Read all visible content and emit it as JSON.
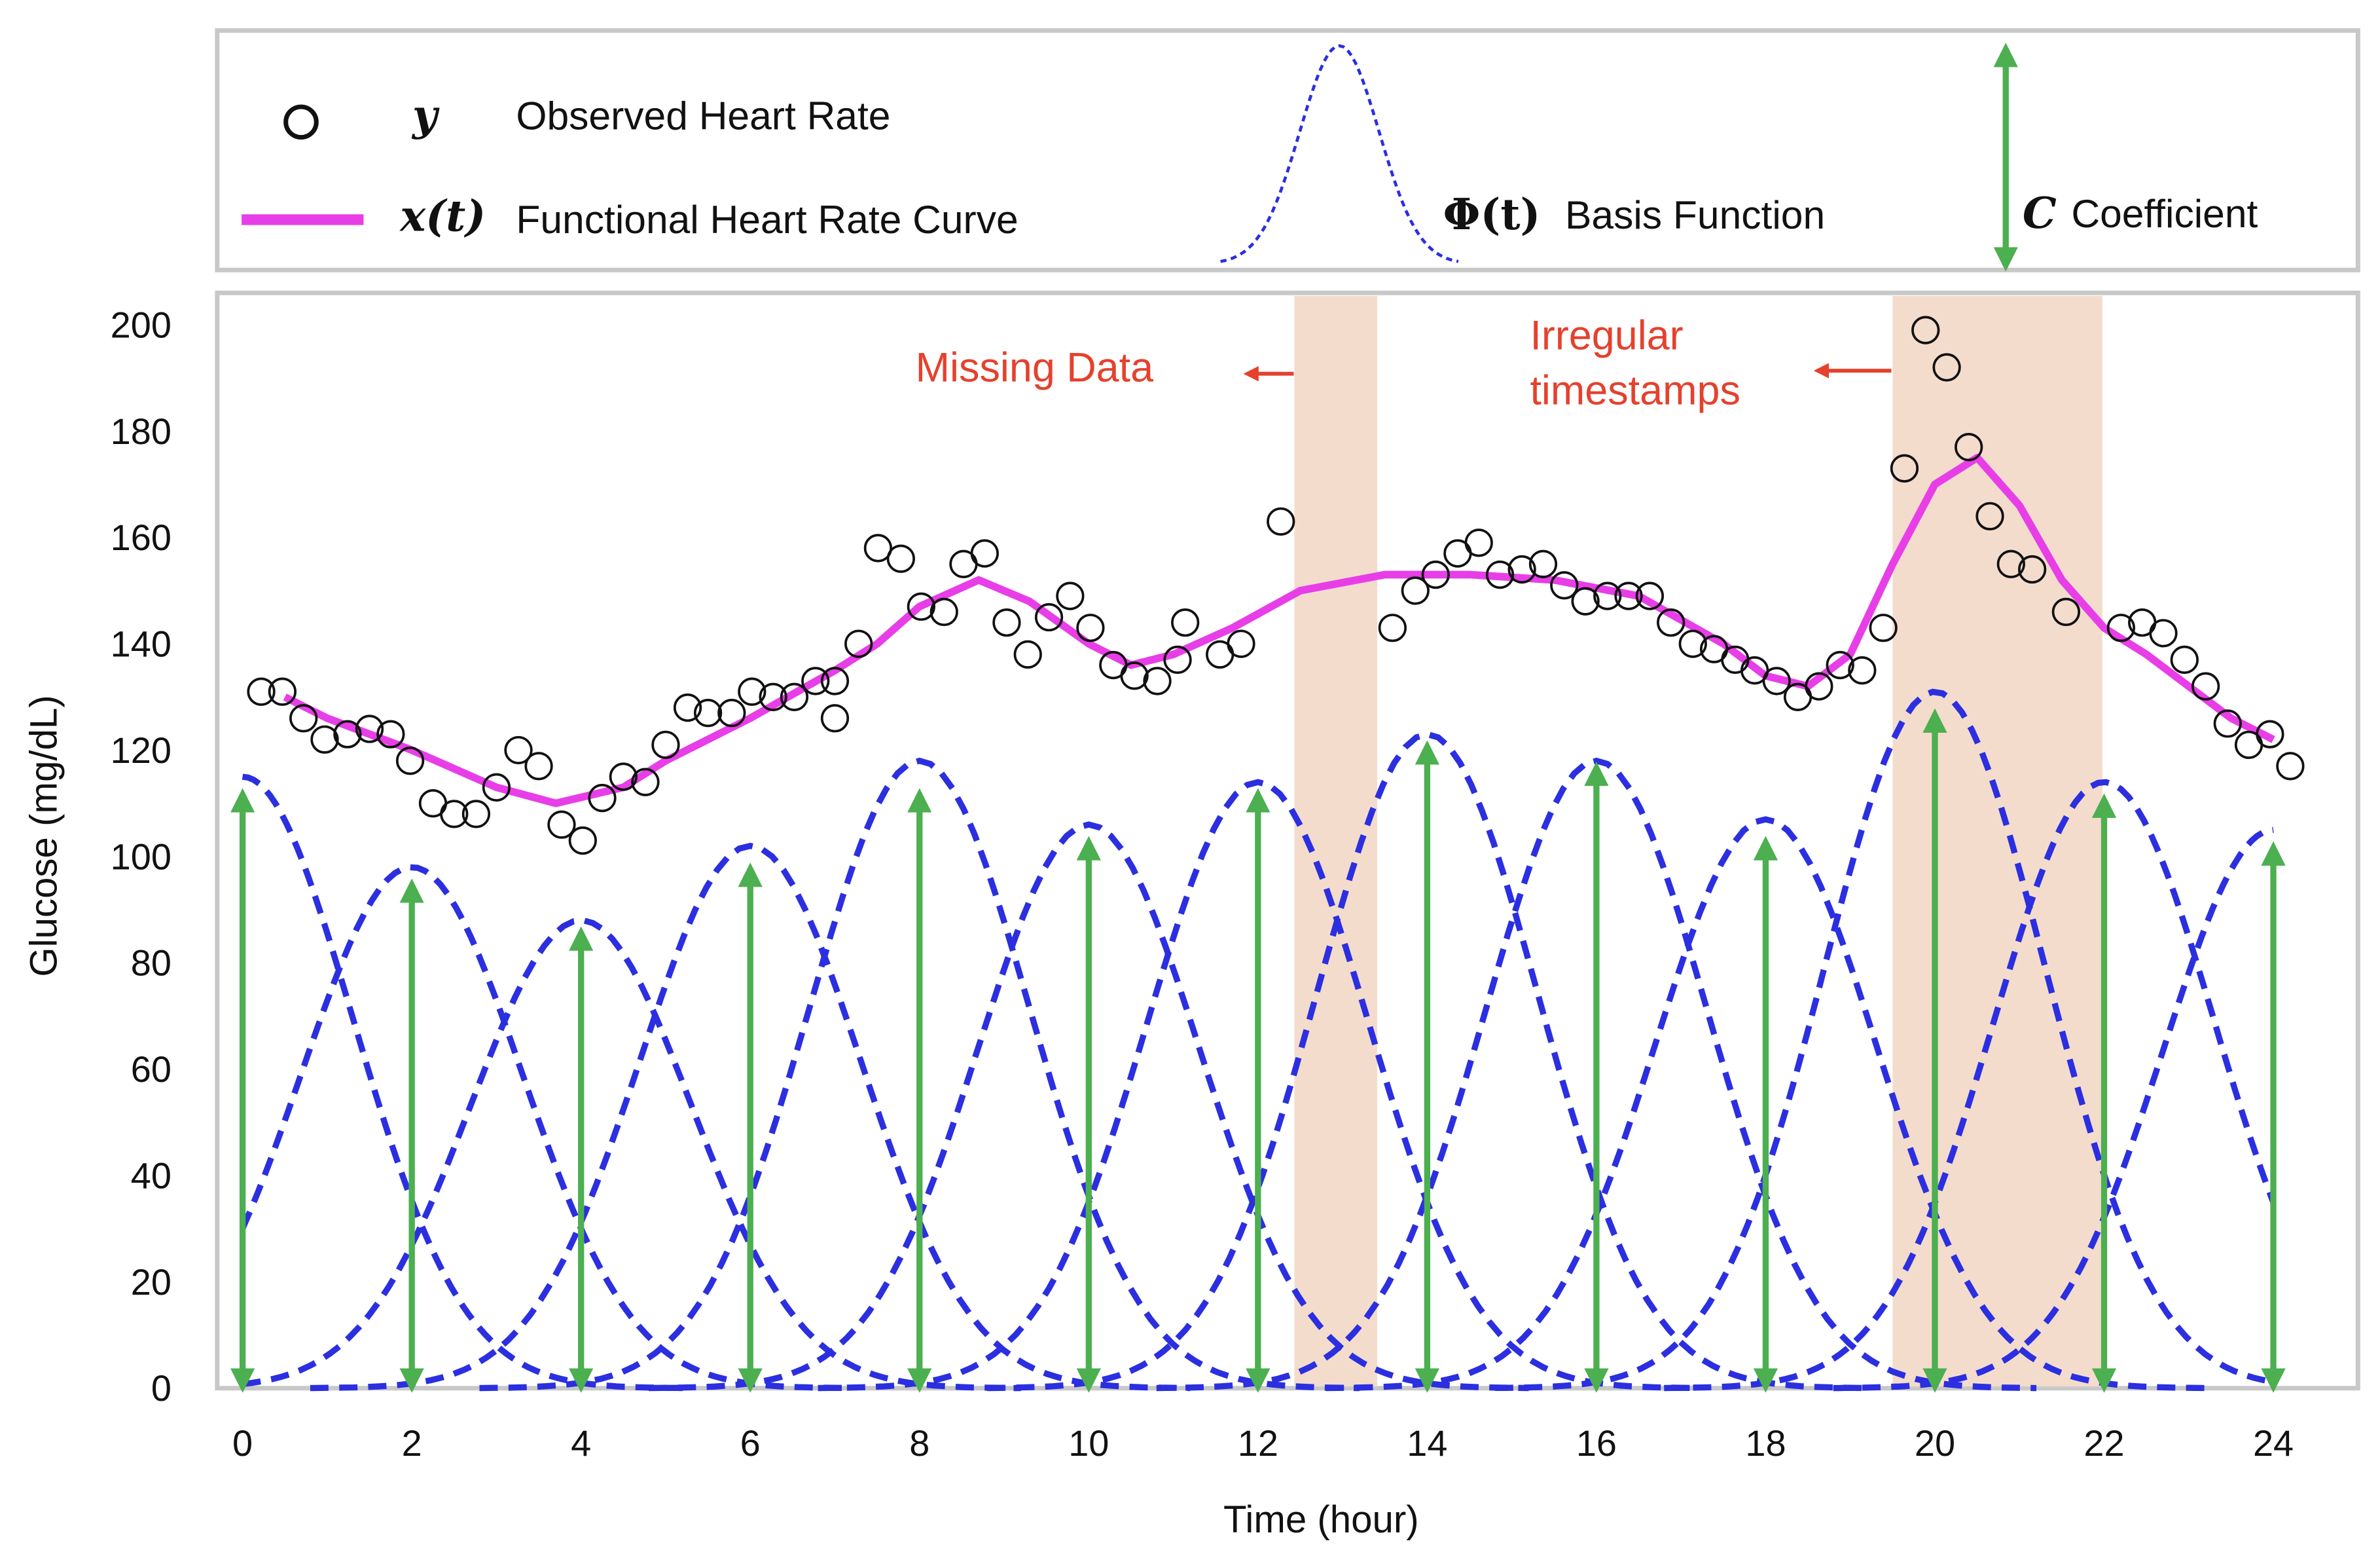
{
  "chart_data": {
    "type": "functional-fit",
    "xlabel": "Time (hour)",
    "ylabel": "Glucose (mg/dL)",
    "xlim": [
      -0.3,
      25
    ],
    "ylim": [
      0,
      206
    ],
    "xticks": [
      0,
      2,
      4,
      6,
      8,
      10,
      12,
      14,
      16,
      18,
      20,
      22,
      24
    ],
    "yticks": [
      0,
      20,
      40,
      60,
      80,
      100,
      120,
      140,
      160,
      180,
      200
    ],
    "grid": false,
    "observed": {
      "symbol": "y",
      "name": "Observed Heart Rate",
      "color": "#111111",
      "x": [
        0.22,
        0.47,
        0.72,
        0.97,
        1.24,
        1.5,
        1.75,
        1.98,
        2.25,
        2.5,
        2.76,
        3.0,
        3.26,
        3.5,
        3.77,
        4.02,
        4.25,
        4.5,
        4.76,
        5.0,
        5.26,
        5.5,
        5.78,
        6.02,
        6.27,
        6.52,
        6.77,
        7.0,
        7.0,
        7.28,
        7.51,
        7.78,
        8.02,
        8.29,
        8.52,
        8.77,
        9.03,
        9.28,
        9.53,
        9.78,
        10.02,
        10.29,
        10.54,
        10.81,
        11.05,
        11.14,
        11.55,
        11.8,
        12.27,
        13.59,
        13.86,
        14.1,
        14.36,
        14.61,
        14.86,
        15.12,
        15.37,
        15.62,
        15.87,
        16.13,
        16.38,
        16.63,
        16.88,
        17.14,
        17.39,
        17.64,
        17.87,
        18.13,
        18.38,
        18.63,
        18.88,
        19.14,
        19.39,
        19.64,
        19.89,
        20.14,
        20.4,
        20.65,
        20.9,
        21.15,
        21.55,
        22.2,
        22.45,
        22.7,
        22.95,
        23.2,
        23.46,
        23.71,
        23.96,
        24.2
      ],
      "values": [
        131,
        131,
        126,
        122,
        123,
        124,
        123,
        118,
        110,
        108,
        108,
        113,
        120,
        117,
        106,
        103,
        111,
        115,
        114,
        121,
        128,
        127,
        127,
        131,
        130,
        130,
        133,
        126,
        133,
        140,
        158,
        156,
        147,
        146,
        155,
        157,
        144,
        138,
        145,
        149,
        143,
        136,
        134,
        133,
        137,
        144,
        138,
        140,
        163,
        143,
        150,
        153,
        157,
        159,
        153,
        154,
        155,
        151,
        148,
        149,
        149,
        149,
        144,
        140,
        139,
        137,
        135,
        133,
        130,
        132,
        136,
        135,
        143,
        173,
        199,
        192,
        177,
        164,
        155,
        154,
        146,
        143,
        144,
        142,
        137,
        132,
        125,
        121,
        123,
        117
      ]
    },
    "curve": {
      "symbol": "x(t)",
      "name": "Functional Heart Rate Curve",
      "color": "#e83ee8",
      "x": [
        0.5,
        1,
        2,
        3,
        3.7,
        4.5,
        5,
        6,
        7,
        7.5,
        8,
        8.7,
        9.3,
        10,
        10.5,
        11,
        11.7,
        12.5,
        13.5,
        14.5,
        15.5,
        16.5,
        17.5,
        18,
        18.5,
        19,
        19.5,
        20,
        20.5,
        21,
        21.5,
        22,
        22.5,
        23,
        23.5,
        24
      ],
      "values": [
        130,
        126,
        120,
        113,
        110,
        113,
        118,
        126,
        135,
        140,
        147,
        152,
        148,
        140,
        136,
        138,
        143,
        150,
        153,
        153,
        152,
        149,
        140,
        134,
        132,
        138,
        155,
        170,
        175,
        166,
        152,
        143,
        138,
        132,
        126,
        122
      ]
    },
    "basis": {
      "symbol": "Φ(t)",
      "name": "Basis Function",
      "color": "#2b2fe0",
      "centers": [
        0,
        2,
        4,
        6,
        8,
        10,
        12,
        14,
        16,
        18,
        20,
        22,
        24
      ],
      "peaks": [
        115,
        98,
        88,
        102,
        118,
        106,
        114,
        123,
        118,
        107,
        131,
        114,
        105
      ],
      "sd": 1.3
    },
    "coefficients": {
      "symbol": "C",
      "name": "Coefficient",
      "color": "#4caf50",
      "x": [
        0,
        2,
        4,
        6,
        8,
        10,
        12,
        14,
        16,
        18,
        20,
        22,
        24
      ],
      "values": [
        112,
        95,
        86,
        98,
        112,
        103,
        112,
        121,
        117,
        103,
        127,
        111,
        102
      ]
    },
    "shaded_regions": [
      [
        12.43,
        13.41
      ],
      [
        19.5,
        21.98
      ]
    ],
    "annotations": [
      {
        "lines": [
          "Missing Data"
        ]
      },
      {
        "lines": [
          "Irregular",
          "timestamps"
        ]
      }
    ]
  }
}
